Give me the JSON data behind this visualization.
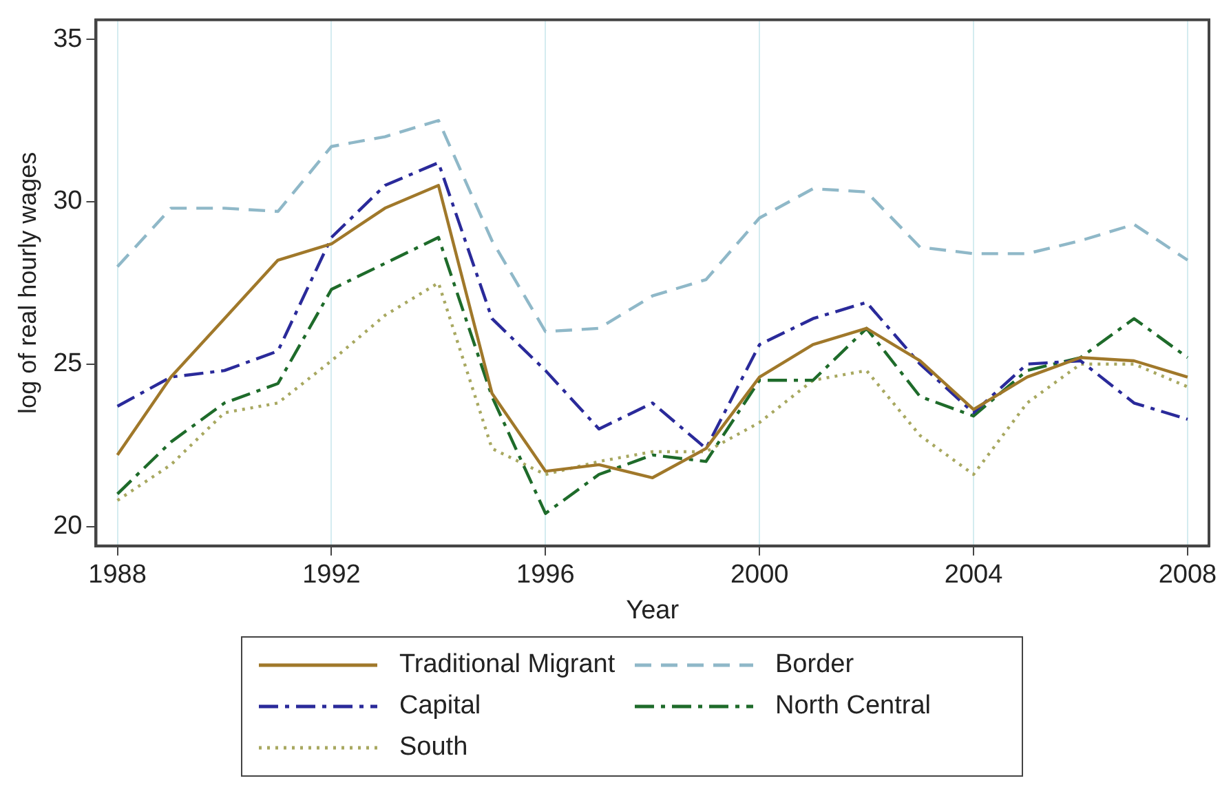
{
  "chart_data": {
    "type": "line",
    "xlabel": "Year",
    "ylabel": "log of real hourly wages",
    "x": [
      1988,
      1989,
      1990,
      1991,
      1992,
      1993,
      1994,
      1995,
      1996,
      1997,
      1998,
      1999,
      2000,
      2001,
      2002,
      2003,
      2004,
      2005,
      2006,
      2007,
      2008
    ],
    "xlim": [
      1987.6,
      2008.4
    ],
    "xticks": [
      1988,
      1992,
      1996,
      2000,
      2004,
      2008
    ],
    "ylim": [
      19.4,
      35.6
    ],
    "yticks": [
      20,
      25,
      30,
      35
    ],
    "grid": "x",
    "legend": "bottom",
    "marker": "none",
    "series": [
      {
        "name": "Traditional Migrant",
        "color": "#a0782a",
        "line_style": "solid",
        "values": [
          22.2,
          24.6,
          26.4,
          28.2,
          28.7,
          29.8,
          30.5,
          24.1,
          21.7,
          21.9,
          21.5,
          22.4,
          24.6,
          25.6,
          26.1,
          25.1,
          23.6,
          24.6,
          25.2,
          25.1,
          24.6
        ]
      },
      {
        "name": "Border",
        "color": "#8fb8c8",
        "line_style": "dashed",
        "values": [
          28.0,
          29.8,
          29.8,
          29.7,
          31.7,
          32.0,
          32.5,
          28.8,
          26.0,
          26.1,
          27.1,
          27.6,
          29.5,
          30.4,
          30.3,
          28.6,
          28.4,
          28.4,
          28.8,
          29.3,
          28.2
        ]
      },
      {
        "name": "Capital",
        "color": "#2a2a9a",
        "line_style": "dashdot",
        "values": [
          23.7,
          24.6,
          24.8,
          25.4,
          28.9,
          30.5,
          31.2,
          26.4,
          24.8,
          23.0,
          23.8,
          22.4,
          25.6,
          26.4,
          26.9,
          25.0,
          23.5,
          25.0,
          25.1,
          23.8,
          23.3
        ]
      },
      {
        "name": "North Central",
        "color": "#1e6b2a",
        "line_style": "dashdot",
        "values": [
          21.0,
          22.6,
          23.8,
          24.4,
          27.3,
          28.1,
          28.9,
          24.0,
          20.4,
          21.6,
          22.2,
          22.0,
          24.5,
          24.5,
          26.1,
          24.0,
          23.4,
          24.8,
          25.2,
          26.4,
          25.2
        ]
      },
      {
        "name": "South",
        "color": "#a8a860",
        "line_style": "dotted",
        "values": [
          20.8,
          21.9,
          23.5,
          23.8,
          25.1,
          26.5,
          27.5,
          22.4,
          21.6,
          22.0,
          22.3,
          22.3,
          23.2,
          24.5,
          24.8,
          22.8,
          21.6,
          23.8,
          25.0,
          25.0,
          24.3
        ]
      }
    ]
  }
}
